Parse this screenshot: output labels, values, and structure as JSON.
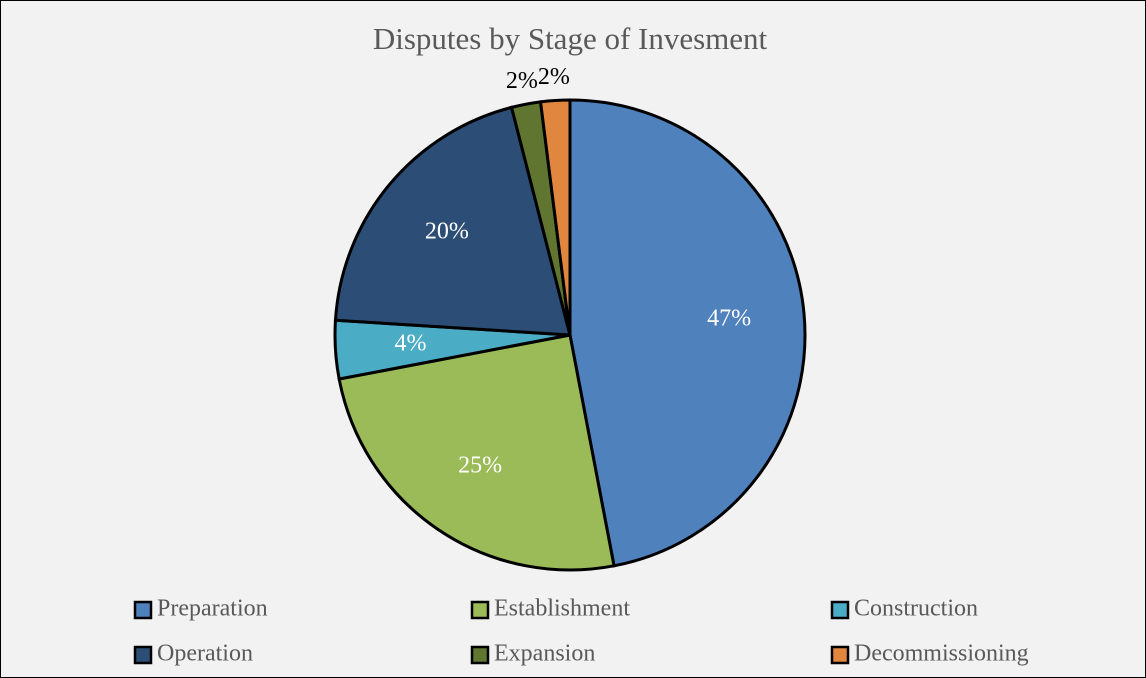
{
  "chart_data": {
    "type": "pie",
    "title": "Disputes by Stage of Invesment",
    "categories": [
      "Preparation",
      "Establishment",
      "Construction",
      "Operation",
      "Expansion",
      "Decommissioning"
    ],
    "values": [
      47,
      25,
      4,
      20,
      2,
      2
    ],
    "value_labels": [
      "47%",
      "25%",
      "4%",
      "20%",
      "2%",
      "2%"
    ],
    "colors": [
      "#4f81bd",
      "#9bbb59",
      "#4bacc6",
      "#2c4d75",
      "#5f7530",
      "#e0863f"
    ],
    "legend": "bottom"
  }
}
